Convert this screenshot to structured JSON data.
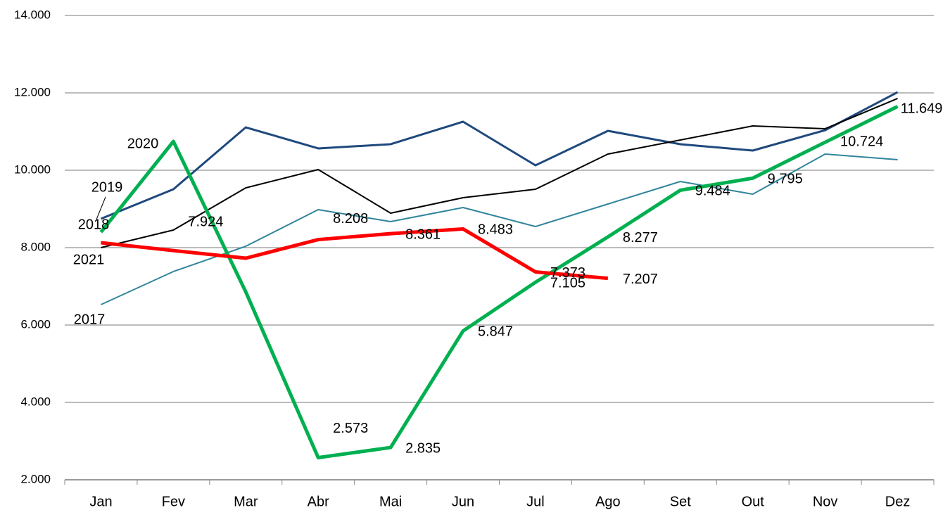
{
  "chart_data": {
    "type": "line",
    "categories": [
      "Jan",
      "Fev",
      "Mar",
      "Abr",
      "Mai",
      "Jun",
      "Jul",
      "Ago",
      "Set",
      "Out",
      "Nov",
      "Dez"
    ],
    "ylim": [
      2000,
      14000
    ],
    "yticks": [
      {
        "value": 2000,
        "label": "2.000"
      },
      {
        "value": 4000,
        "label": "4.000"
      },
      {
        "value": 6000,
        "label": "6.000"
      },
      {
        "value": 8000,
        "label": "8.000"
      },
      {
        "value": 10000,
        "label": "10.000"
      },
      {
        "value": 12000,
        "label": "12.000"
      },
      {
        "value": 14000,
        "label": "14.000"
      }
    ],
    "grid": true,
    "series": [
      {
        "name": "2017",
        "color": "#31859c",
        "width": 2,
        "values": [
          6527,
          7382,
          8036,
          8982,
          8673,
          9036,
          8545,
          9127,
          9709,
          9382,
          10418,
          10273
        ]
      },
      {
        "name": "2018",
        "color": "#1f497d",
        "width": 3,
        "values": [
          8745,
          9509,
          11109,
          10564,
          10673,
          11255,
          10127,
          11018,
          10673,
          10509,
          11036,
          12018
        ]
      },
      {
        "name": "2019",
        "color": "#000000",
        "width": 2,
        "values": [
          8000,
          8455,
          9545,
          10018,
          8891,
          9291,
          9509,
          10418,
          10782,
          11145,
          11073,
          11855
        ]
      },
      {
        "name": "2020",
        "color": "#00b050",
        "width": 5,
        "values": [
          8400,
          10745,
          6855,
          2573,
          2835,
          5847,
          7105,
          8277,
          9484,
          9795,
          10724,
          11649
        ],
        "value_labels": [
          null,
          null,
          null,
          "2.573",
          "2.835",
          "5.847",
          "7.105",
          "8.277",
          "9.484",
          "9.795",
          "10.724",
          "11.649"
        ]
      },
      {
        "name": "2021",
        "color": "#ff0000",
        "width": 5,
        "values": [
          8127,
          7924,
          7727,
          8208,
          8361,
          8483,
          7373,
          7207,
          null,
          null,
          null,
          null
        ],
        "value_labels": [
          null,
          "7.924",
          null,
          "8.208",
          "8.361",
          "8.483",
          "7.373",
          "7.207",
          null,
          null,
          null,
          null
        ]
      }
    ]
  }
}
